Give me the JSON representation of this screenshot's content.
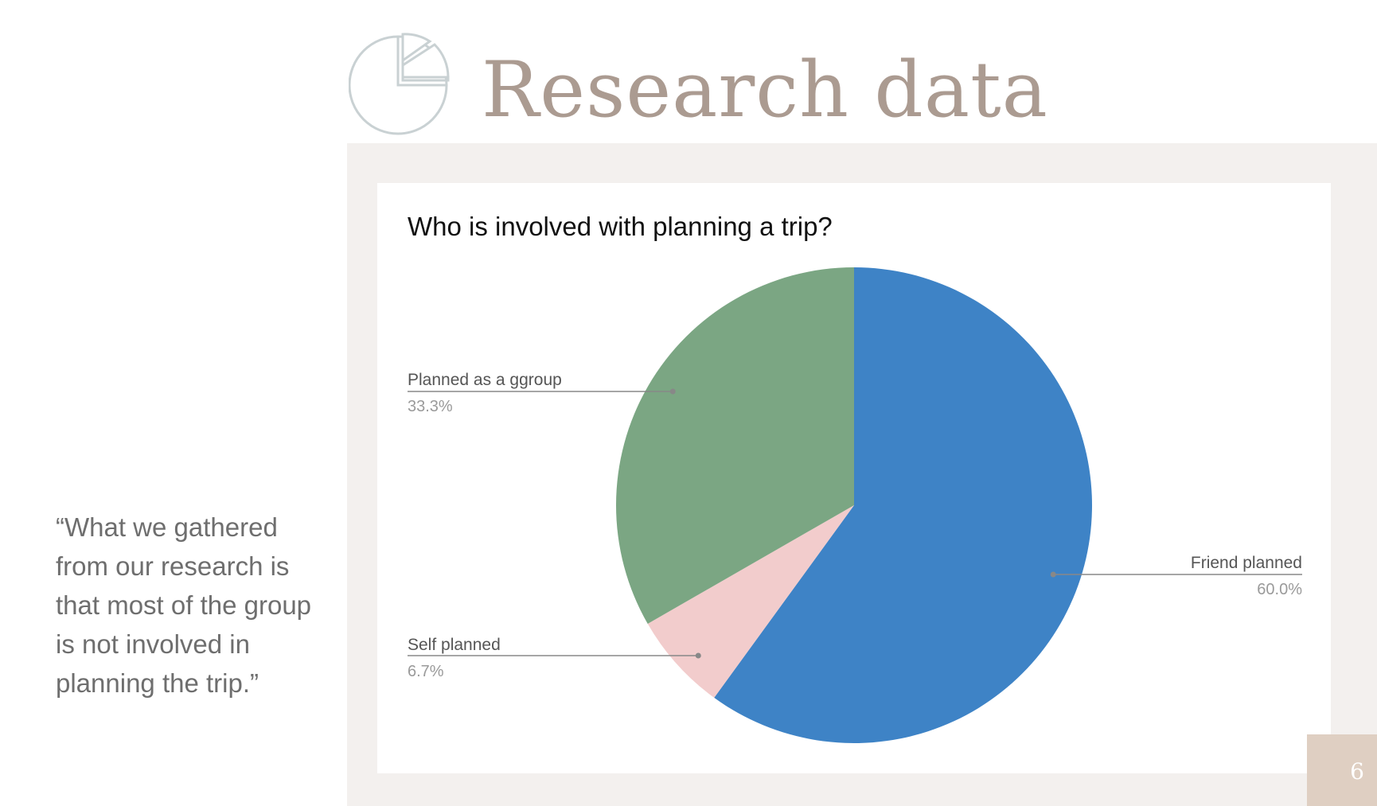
{
  "slide": {
    "title": "Research data",
    "page_number": "6",
    "quote": "“What we gathered from our research is that most of the group is not involved in planning the trip.”",
    "icon": "pie-chart-icon"
  },
  "colors": {
    "title": "#ab9b91",
    "panel": "#f3f0ee",
    "badge": "#dfcfc2",
    "icon_stroke": "#c9d1d3"
  },
  "chart_data": {
    "type": "pie",
    "title": "Who is involved with planning a trip?",
    "legend": "none",
    "slices": [
      {
        "label": "Friend planned",
        "value": 60.0,
        "display": "60.0%",
        "color": "#3e83c6"
      },
      {
        "label": "Self planned",
        "value": 6.7,
        "display": "6.7%",
        "color": "#f2cccc"
      },
      {
        "label": "Planned as a ggroup",
        "value": 33.3,
        "display": "33.3%",
        "color": "#7ba683"
      }
    ]
  }
}
